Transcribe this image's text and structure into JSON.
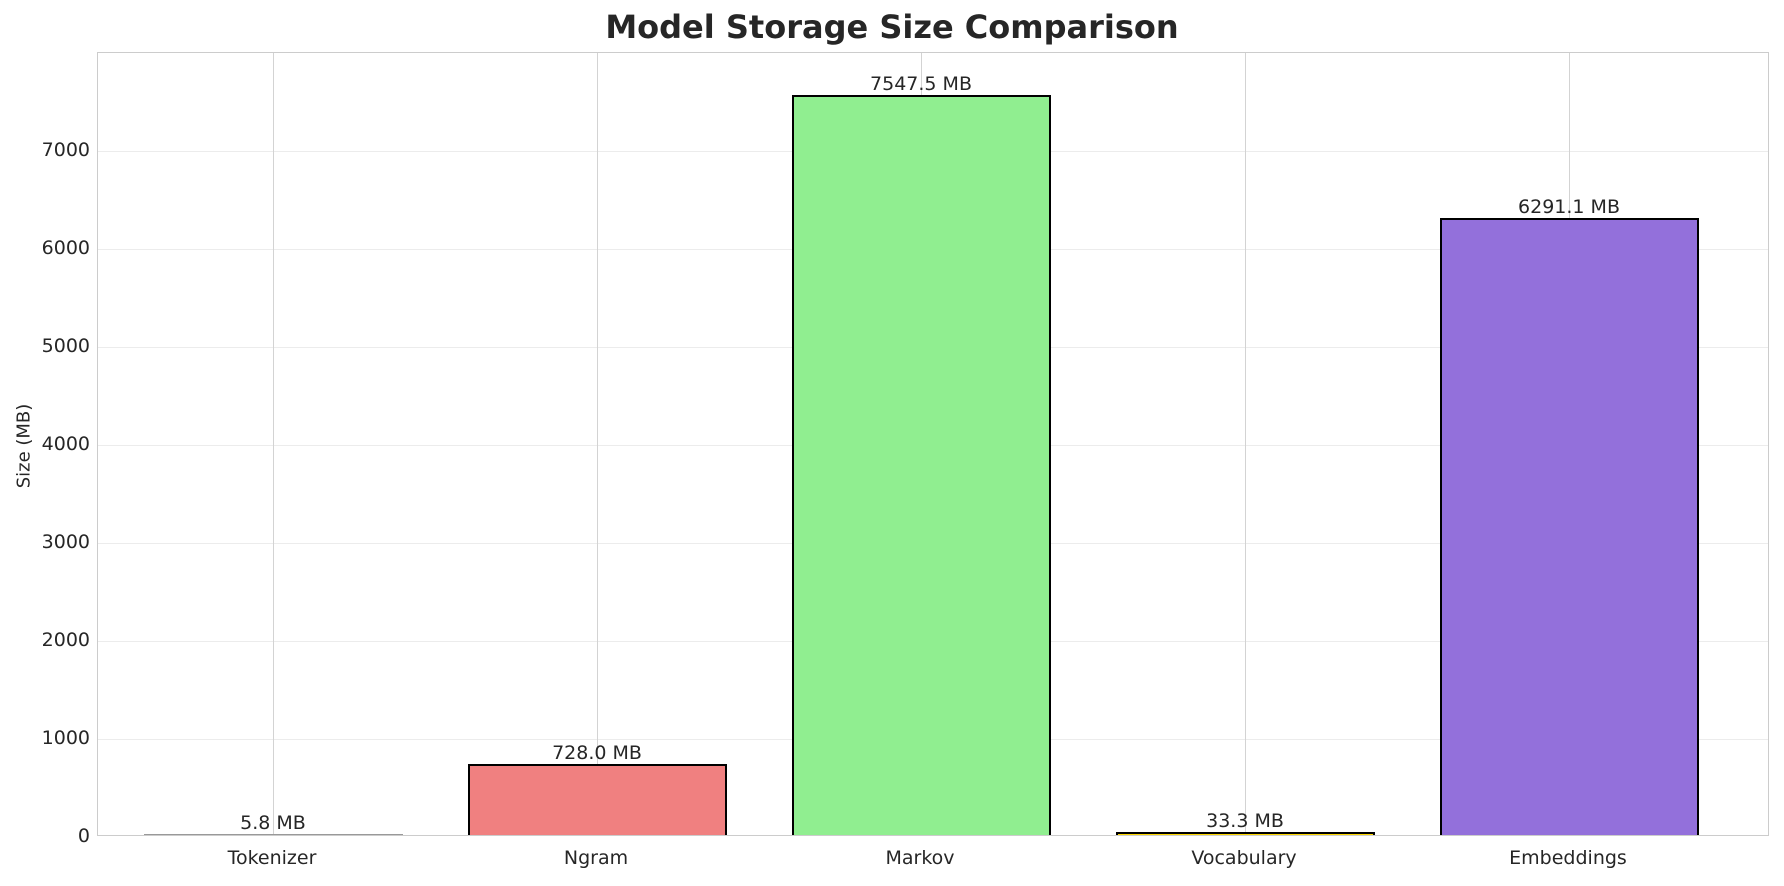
{
  "chart_data": {
    "type": "bar",
    "title": "Model Storage Size Comparison",
    "xlabel": "",
    "ylabel": "Size (MB)",
    "categories": [
      "Tokenizer",
      "Ngram",
      "Markov",
      "Vocabulary",
      "Embeddings"
    ],
    "values": [
      5.8,
      728.0,
      7547.5,
      33.3,
      6291.1
    ],
    "value_labels": [
      "5.8 MB",
      "728.0 MB",
      "7547.5 MB",
      "33.3 MB",
      "6291.1 MB"
    ],
    "colors": [
      "#87ceeb",
      "#f08080",
      "#90ee90",
      "#ffd700",
      "#9370db"
    ],
    "ylim": [
      0,
      7925
    ],
    "yticks": [
      "0",
      "1000",
      "2000",
      "3000",
      "4000",
      "5000",
      "6000",
      "7000"
    ],
    "grid": true,
    "legend": null
  }
}
